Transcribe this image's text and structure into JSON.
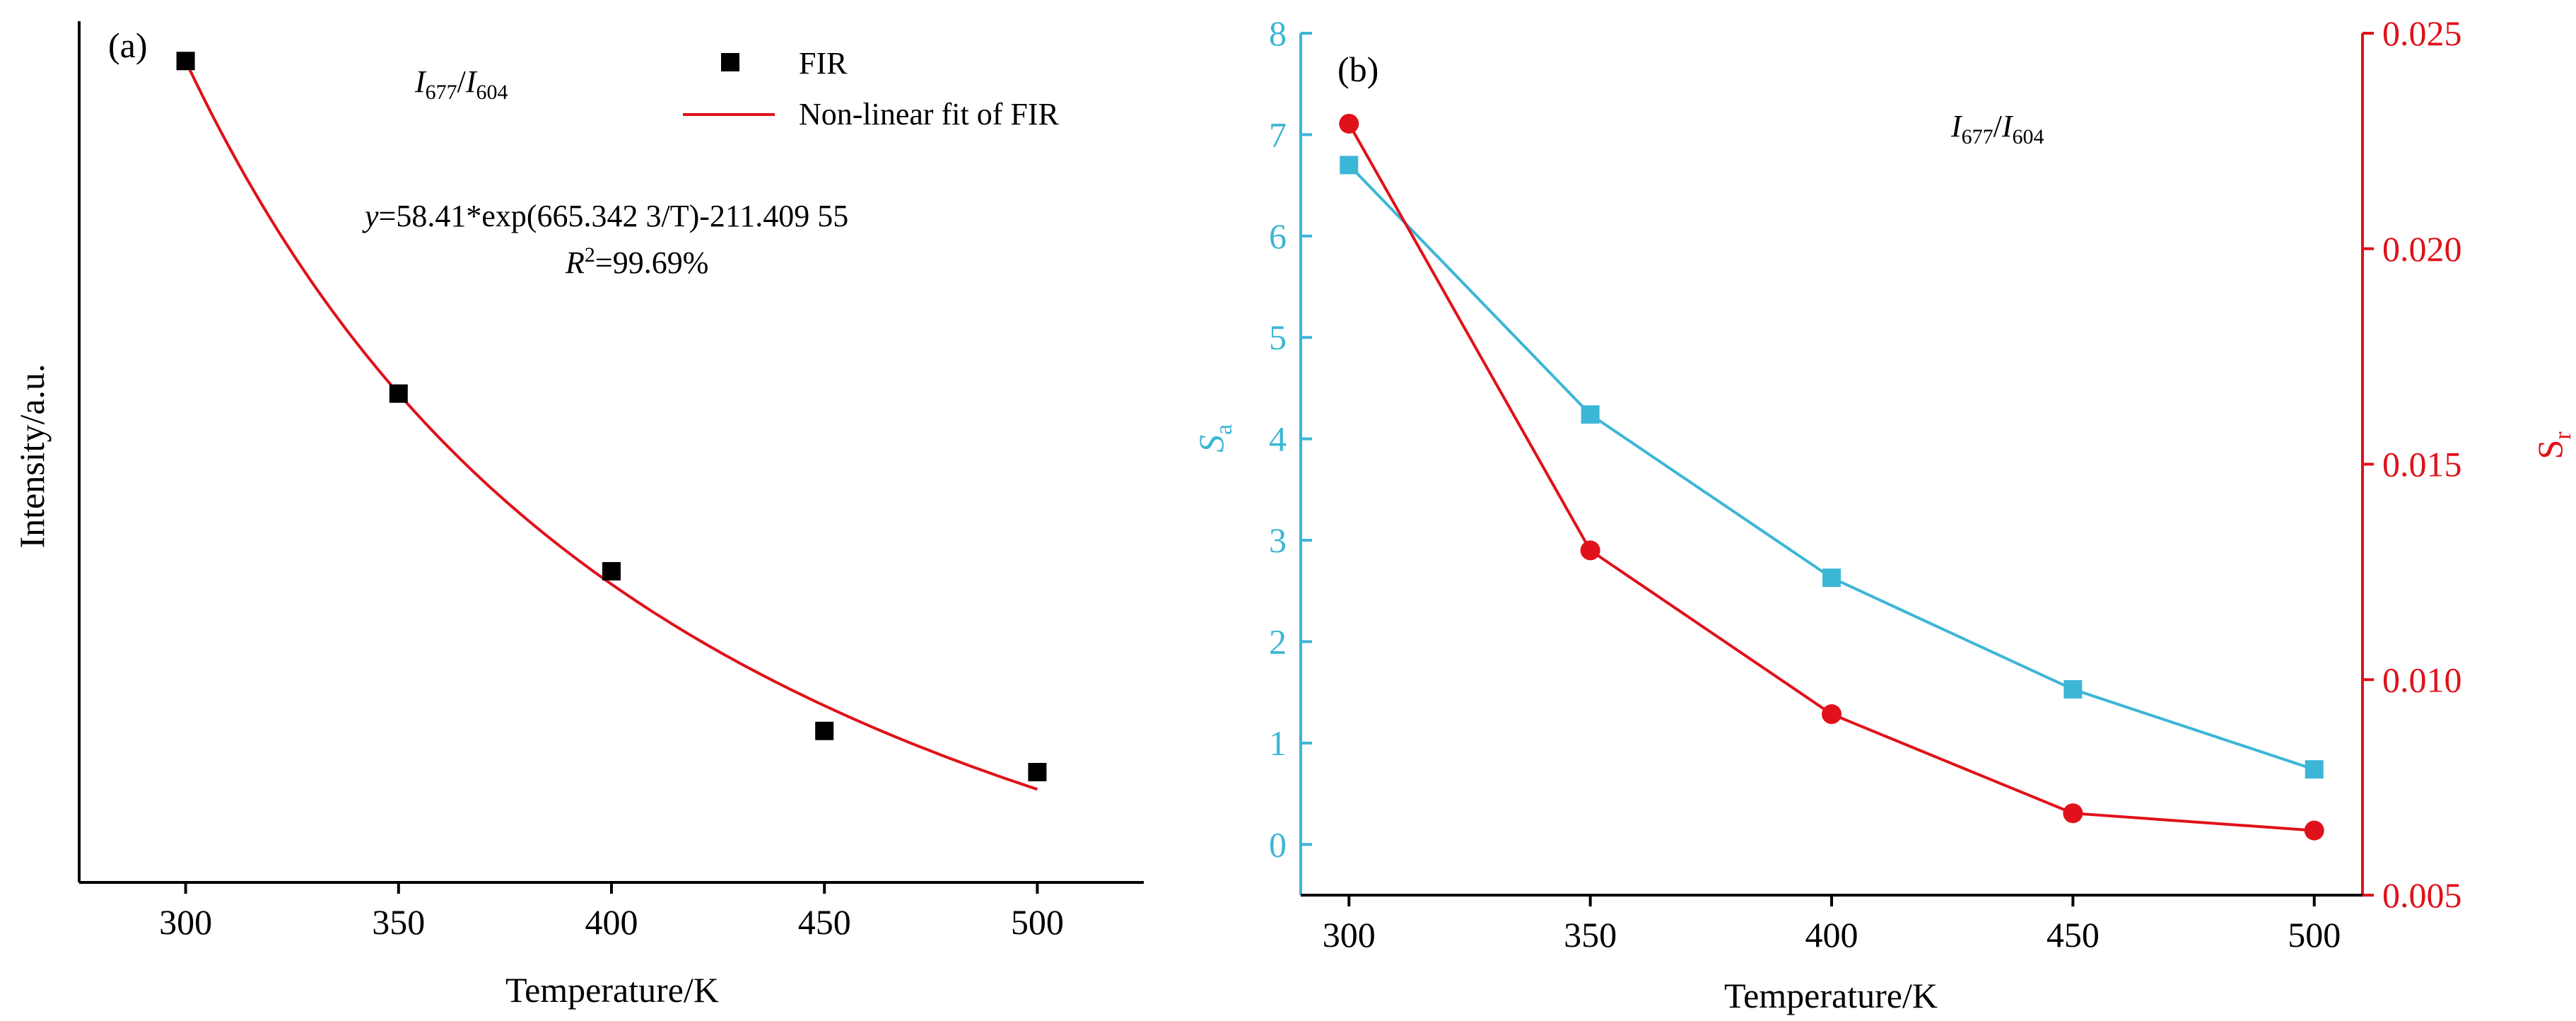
{
  "chart_data": [
    {
      "type": "scatter",
      "panel_label": "(a)",
      "annotation": {
        "ratio": {
          "n1": "677",
          "n2": "604"
        },
        "equation": "=58.41*exp(665.342 3/T)-211.409 55",
        "r2": "=99.69%"
      },
      "xlabel": "Temperature/K",
      "ylabel": "Intensity/a.u.",
      "xlim": [
        275,
        525
      ],
      "ylim": [
        0,
        1
      ],
      "x_ticks": [
        300,
        350,
        400,
        450,
        500
      ],
      "legend_position": "top-right",
      "grid": false,
      "series": [
        {
          "name": "FIR",
          "marker": "square",
          "color": "#000000",
          "x": [
            300,
            350,
            400,
            450,
            500
          ],
          "y": [
            0.9538,
            0.5676,
            0.3613,
            0.1759,
            0.1281
          ]
        },
        {
          "name": "Non-linear fit of FIR",
          "kind": "line",
          "color": "#e0111a",
          "equation_params": {
            "a": 58.41,
            "b": 665.3423,
            "c": -211.40955
          }
        }
      ]
    },
    {
      "type": "line",
      "panel_label": "(b)",
      "annotation": {
        "ratio": {
          "n1": "677",
          "n2": "604"
        }
      },
      "xlabel": "Temperature/K",
      "ylabel_left": {
        "main": "S",
        "sub": "a"
      },
      "ylabel_right": {
        "main": "S",
        "sub": "r"
      },
      "xlim": [
        290,
        510
      ],
      "ylim_left": [
        -0.5,
        8
      ],
      "ylim_right": [
        0.005,
        0.025
      ],
      "x_ticks": [
        300,
        350,
        400,
        450,
        500
      ],
      "y_ticks_left": [
        0,
        1,
        2,
        3,
        4,
        5,
        6,
        7,
        8
      ],
      "y_ticks_right": [
        "0.005",
        "0.010",
        "0.015",
        "0.020",
        "0.025"
      ],
      "grid": false,
      "series": [
        {
          "name": "Sa",
          "axis": "left",
          "marker": "square",
          "color": "#3cb6d6",
          "x": [
            300,
            350,
            400,
            450,
            500
          ],
          "y": [
            6.7,
            4.24,
            2.63,
            1.53,
            0.74
          ]
        },
        {
          "name": "Sr",
          "axis": "right",
          "marker": "circle",
          "color": "#e0111a",
          "x": [
            300,
            350,
            400,
            450,
            500
          ],
          "y": [
            0.0229,
            0.013,
            0.0092,
            0.0069,
            0.0065
          ]
        }
      ]
    }
  ]
}
